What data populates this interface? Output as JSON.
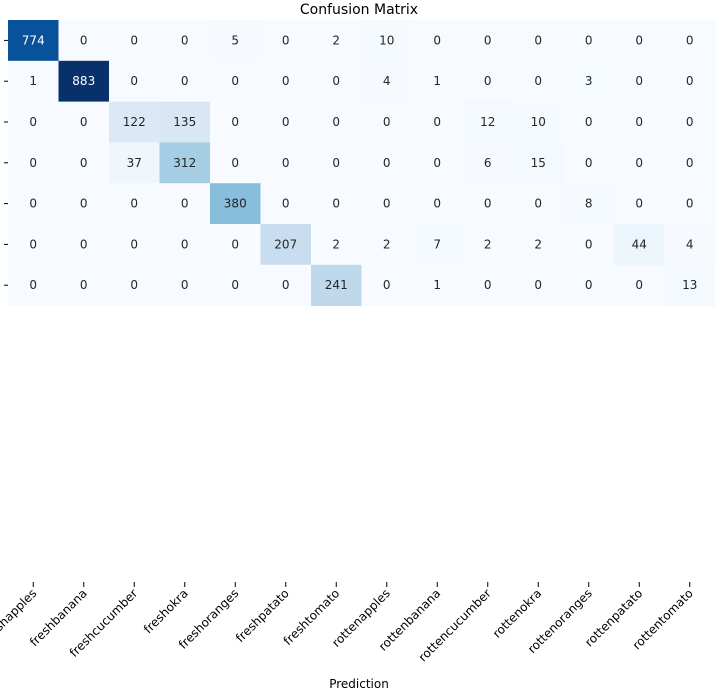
{
  "chart_data": {
    "type": "heatmap",
    "title": "Confusion Matrix",
    "xlabel": "Prediction",
    "ylabel": "",
    "colormap": "Blues",
    "value_range": [
      0,
      883
    ],
    "columns": [
      "freshapples",
      "freshbanana",
      "freshcucumber",
      "freshokra",
      "freshoranges",
      "freshpatato",
      "freshtomato",
      "rottenapples",
      "rottenbanana",
      "rottencucumber",
      "rottenokra",
      "rottenoranges",
      "rottenpatato",
      "rottentomato"
    ],
    "rows": [
      [
        774,
        0,
        0,
        0,
        5,
        0,
        2,
        10,
        0,
        0,
        0,
        0,
        0,
        0
      ],
      [
        1,
        883,
        0,
        0,
        0,
        0,
        0,
        4,
        1,
        0,
        0,
        3,
        0,
        0
      ],
      [
        0,
        0,
        122,
        135,
        0,
        0,
        0,
        0,
        0,
        12,
        10,
        0,
        0,
        0
      ],
      [
        0,
        0,
        37,
        312,
        0,
        0,
        0,
        0,
        0,
        6,
        15,
        0,
        0,
        0
      ],
      [
        0,
        0,
        0,
        0,
        380,
        0,
        0,
        0,
        0,
        0,
        0,
        8,
        0,
        0
      ],
      [
        0,
        0,
        0,
        0,
        0,
        207,
        2,
        2,
        7,
        2,
        2,
        0,
        44,
        4
      ],
      [
        0,
        0,
        0,
        0,
        0,
        0,
        241,
        0,
        1,
        0,
        0,
        0,
        0,
        13
      ]
    ]
  }
}
